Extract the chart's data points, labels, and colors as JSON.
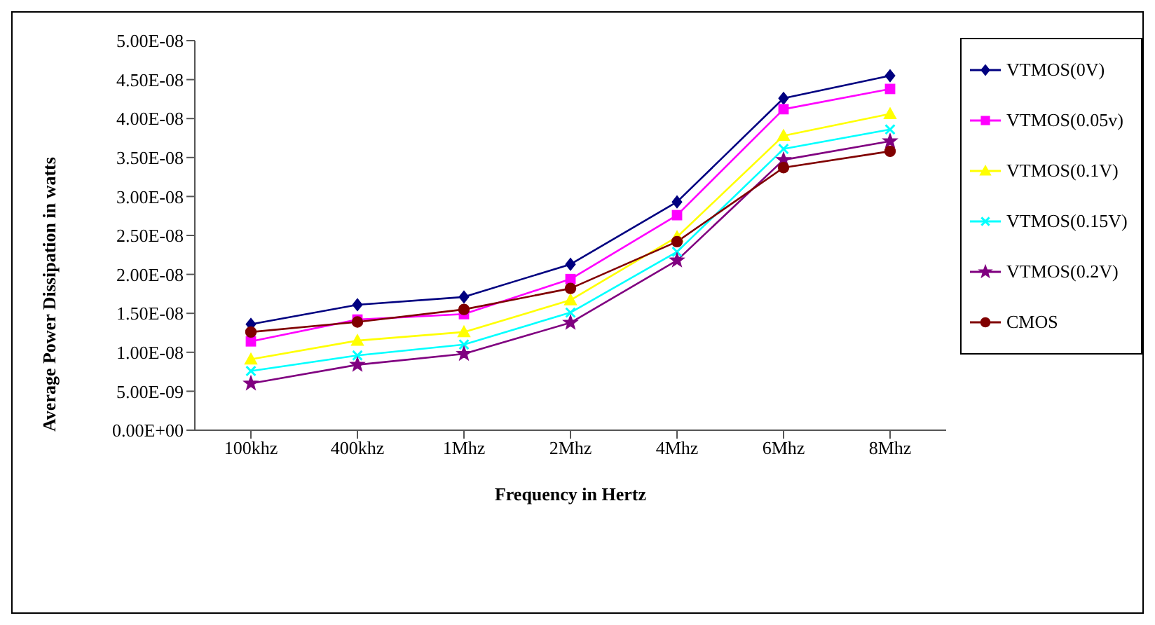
{
  "chart_data": {
    "type": "line",
    "xlabel": "Frequency in Hertz",
    "ylabel": "Average Power Dissipation in watts",
    "categories": [
      "100khz",
      "400khz",
      "1Mhz",
      "2Mhz",
      "4Mhz",
      "6Mhz",
      "8Mhz"
    ],
    "ylim": [
      0,
      5e-08
    ],
    "yticks": [
      {
        "value": 0,
        "label": "0.00E+00"
      },
      {
        "value": 5e-09,
        "label": "5.00E-09"
      },
      {
        "value": 1e-08,
        "label": "1.00E-08"
      },
      {
        "value": 1.5e-08,
        "label": "1.50E-08"
      },
      {
        "value": 2e-08,
        "label": "2.00E-08"
      },
      {
        "value": 2.5e-08,
        "label": "2.50E-08"
      },
      {
        "value": 3e-08,
        "label": "3.00E-08"
      },
      {
        "value": 3.5e-08,
        "label": "3.50E-08"
      },
      {
        "value": 4e-08,
        "label": "4.00E-08"
      },
      {
        "value": 4.5e-08,
        "label": "4.50E-08"
      },
      {
        "value": 5e-08,
        "label": "5.00E-08"
      }
    ],
    "grid": false,
    "legend": "right",
    "series": [
      {
        "name": "VTMOS(0V)",
        "color": "#000080",
        "marker": "diamond",
        "values": [
          1.36e-08,
          1.61e-08,
          1.71e-08,
          2.13e-08,
          2.93e-08,
          4.26e-08,
          4.55e-08
        ]
      },
      {
        "name": "VTMOS(0.05v)",
        "color": "#ff00ff",
        "marker": "square",
        "values": [
          1.14e-08,
          1.42e-08,
          1.49e-08,
          1.94e-08,
          2.76e-08,
          4.12e-08,
          4.38e-08
        ]
      },
      {
        "name": "VTMOS(0.1V)",
        "color": "#ffff00",
        "marker": "triangle",
        "values": [
          9.1e-09,
          1.15e-08,
          1.26e-08,
          1.67e-08,
          2.48e-08,
          3.78e-08,
          4.06e-08
        ]
      },
      {
        "name": "VTMOS(0.15V)",
        "color": "#00ffff",
        "marker": "cross",
        "values": [
          7.6e-09,
          9.6e-09,
          1.1e-08,
          1.51e-08,
          2.29e-08,
          3.61e-08,
          3.86e-08
        ]
      },
      {
        "name": "VTMOS(0.2V)",
        "color": "#800080",
        "marker": "star",
        "values": [
          6e-09,
          8.4e-09,
          9.8e-09,
          1.38e-08,
          2.18e-08,
          3.47e-08,
          3.71e-08
        ]
      },
      {
        "name": "CMOS",
        "color": "#800000",
        "marker": "circle",
        "values": [
          1.26e-08,
          1.39e-08,
          1.55e-08,
          1.82e-08,
          2.42e-08,
          3.37e-08,
          3.58e-08
        ]
      }
    ]
  }
}
